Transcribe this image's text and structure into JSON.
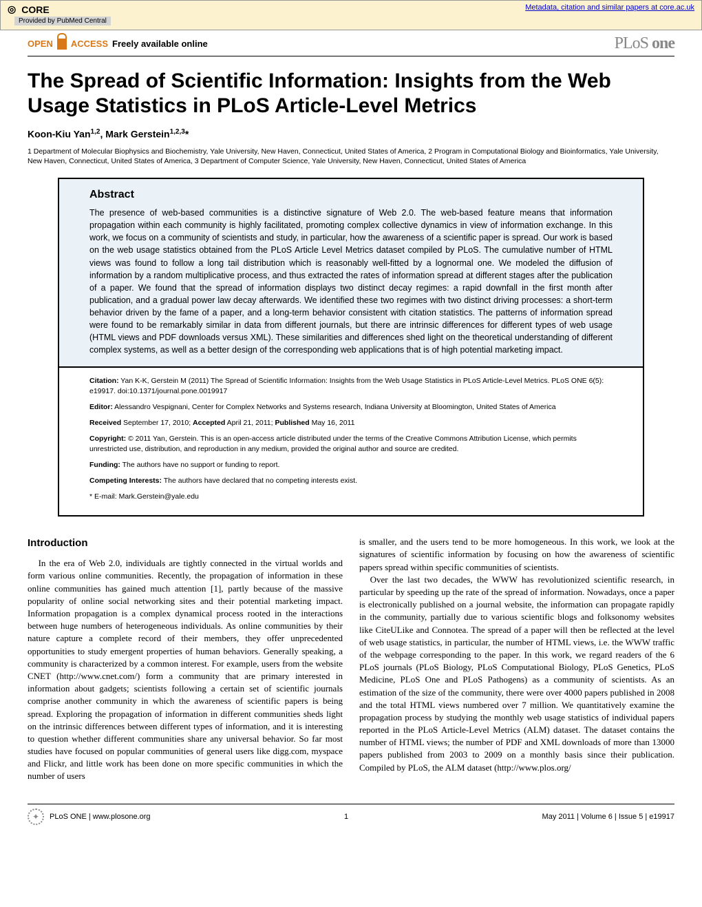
{
  "core": {
    "brand": "CORE",
    "link_text": "Metadata, citation and similar papers at core.ac.uk",
    "provided": "Provided by PubMed Central"
  },
  "header": {
    "open": "OPEN",
    "access": "ACCESS",
    "freely": "Freely available online",
    "journal_logo_prefix": "PLoS ",
    "journal_logo_bold": "one"
  },
  "paper": {
    "title": "The Spread of Scientific Information: Insights from the Web Usage Statistics in PLoS Article-Level Metrics",
    "authors_html": "Koon-Kiu Yan",
    "author1_sup": "1,2",
    "author2": ", Mark Gerstein",
    "author2_sup": "1,2,3",
    "star": "*",
    "affiliations": "1 Department of Molecular Biophysics and Biochemistry, Yale University, New Haven, Connecticut, United States of America, 2 Program in Computational Biology and Bioinformatics, Yale University, New Haven, Connecticut, United States of America, 3 Department of Computer Science, Yale University, New Haven, Connecticut, United States of America"
  },
  "abstract": {
    "heading": "Abstract",
    "text": "The presence of web-based communities is a distinctive signature of Web 2.0. The web-based feature means that information propagation within each community is highly facilitated, promoting complex collective dynamics in view of information exchange. In this work, we focus on a community of scientists and study, in particular, how the awareness of a scientific paper is spread. Our work is based on the web usage statistics obtained from the PLoS Article Level Metrics dataset compiled by PLoS. The cumulative number of HTML views was found to follow a long tail distribution which is reasonably well-fitted by a lognormal one. We modeled the diffusion of information by a random multiplicative process, and thus extracted the rates of information spread at different stages after the publication of a paper. We found that the spread of information displays two distinct decay regimes: a rapid downfall in the first month after publication, and a gradual power law decay afterwards. We identified these two regimes with two distinct driving processes: a short-term behavior driven by the fame of a paper, and a long-term behavior consistent with citation statistics. The patterns of information spread were found to be remarkably similar in data from different journals, but there are intrinsic differences for different types of web usage (HTML views and PDF downloads versus XML). These similarities and differences shed light on the theoretical understanding of different complex systems, as well as a better design of the corresponding web applications that is of high potential marketing impact."
  },
  "meta": {
    "citation_label": "Citation:",
    "citation": " Yan K-K, Gerstein M (2011) The Spread of Scientific Information: Insights from the Web Usage Statistics in PLoS Article-Level Metrics. PLoS ONE 6(5): e19917. doi:10.1371/journal.pone.0019917",
    "editor_label": "Editor:",
    "editor": " Alessandro Vespignani, Center for Complex Networks and Systems research, Indiana University at Bloomington, United States of America",
    "received_label": "Received",
    "received": " September 17, 2010; ",
    "accepted_label": "Accepted",
    "accepted": " April 21, 2011; ",
    "published_label": "Published",
    "published": " May 16, 2011",
    "copyright_label": "Copyright:",
    "copyright": " © 2011 Yan, Gerstein. This is an open-access article distributed under the terms of the Creative Commons Attribution License, which permits unrestricted use, distribution, and reproduction in any medium, provided the original author and source are credited.",
    "funding_label": "Funding:",
    "funding": " The authors have no support or funding to report.",
    "competing_label": "Competing Interests:",
    "competing": " The authors have declared that no competing interests exist.",
    "email_label": "* E-mail: ",
    "email": "Mark.Gerstein@yale.edu"
  },
  "body": {
    "intro_heading": "Introduction",
    "col1_p1": "In the era of Web 2.0, individuals are tightly connected in the virtual worlds and form various online communities. Recently, the propagation of information in these online communities has gained much attention [1], partly because of the massive popularity of online social networking sites and their potential marketing impact. Information propagation is a complex dynamical process rooted in the interactions between huge numbers of heterogeneous individuals. As online communities by their nature capture a complete record of their members, they offer unprecedented opportunities to study emergent properties of human behaviors. Generally speaking, a community is characterized by a common interest. For example, users from the website CNET (http://www.cnet.com/) form a community that are primary interested in information about gadgets; scientists following a certain set of scientific journals comprise another community in which the awareness of scientific papers is being spread. Exploring the propagation of information in different communities sheds light on the intrinsic differences between different types of information, and it is interesting to question whether different communities share any universal behavior. So far most studies have focused on popular communities of general users like digg.com, myspace and Flickr, and little work has been done on more specific communities in which the number of users",
    "col2_p1": "is smaller, and the users tend to be more homogeneous. In this work, we look at the signatures of scientific information by focusing on how the awareness of scientific papers spread within specific communities of scientists.",
    "col2_p2": "Over the last two decades, the WWW has revolutionized scientific research, in particular by speeding up the rate of the spread of information. Nowadays, once a paper is electronically published on a journal website, the information can propagate rapidly in the community, partially due to various scientific blogs and folksonomy websites like CiteULike and Connotea. The spread of a paper will then be reflected at the level of web usage statistics, in particular, the number of HTML views, i.e. the WWW traffic of the webpage corresponding to the paper. In this work, we regard readers of the 6 PLoS journals (PLoS Biology, PLoS Computational Biology, PLoS Genetics, PLoS Medicine, PLoS One and PLoS Pathogens) as a community of scientists. As an estimation of the size of the community, there were over 4000 papers published in 2008 and the total HTML views numbered over 7 million. We quantitatively examine the propagation process by studying the monthly web usage statistics of individual papers reported in the PLoS Article-Level Metrics (ALM) dataset. The dataset contains the number of HTML views; the number of PDF and XML downloads of more than 13000 papers published from 2003 to 2009 on a monthly basis since their publication. Compiled by PLoS, the ALM dataset (http://www.plos.org/"
  },
  "footer": {
    "journal": "PLoS ONE | www.plosone.org",
    "page_num": "1",
    "issue": "May 2011 | Volume 6 | Issue 5 | e19917"
  },
  "colors": {
    "banner_bg": "#fdf2d0",
    "abstract_bg": "#eaf2f8",
    "orange": "#d97818",
    "link": "#0000cc"
  }
}
